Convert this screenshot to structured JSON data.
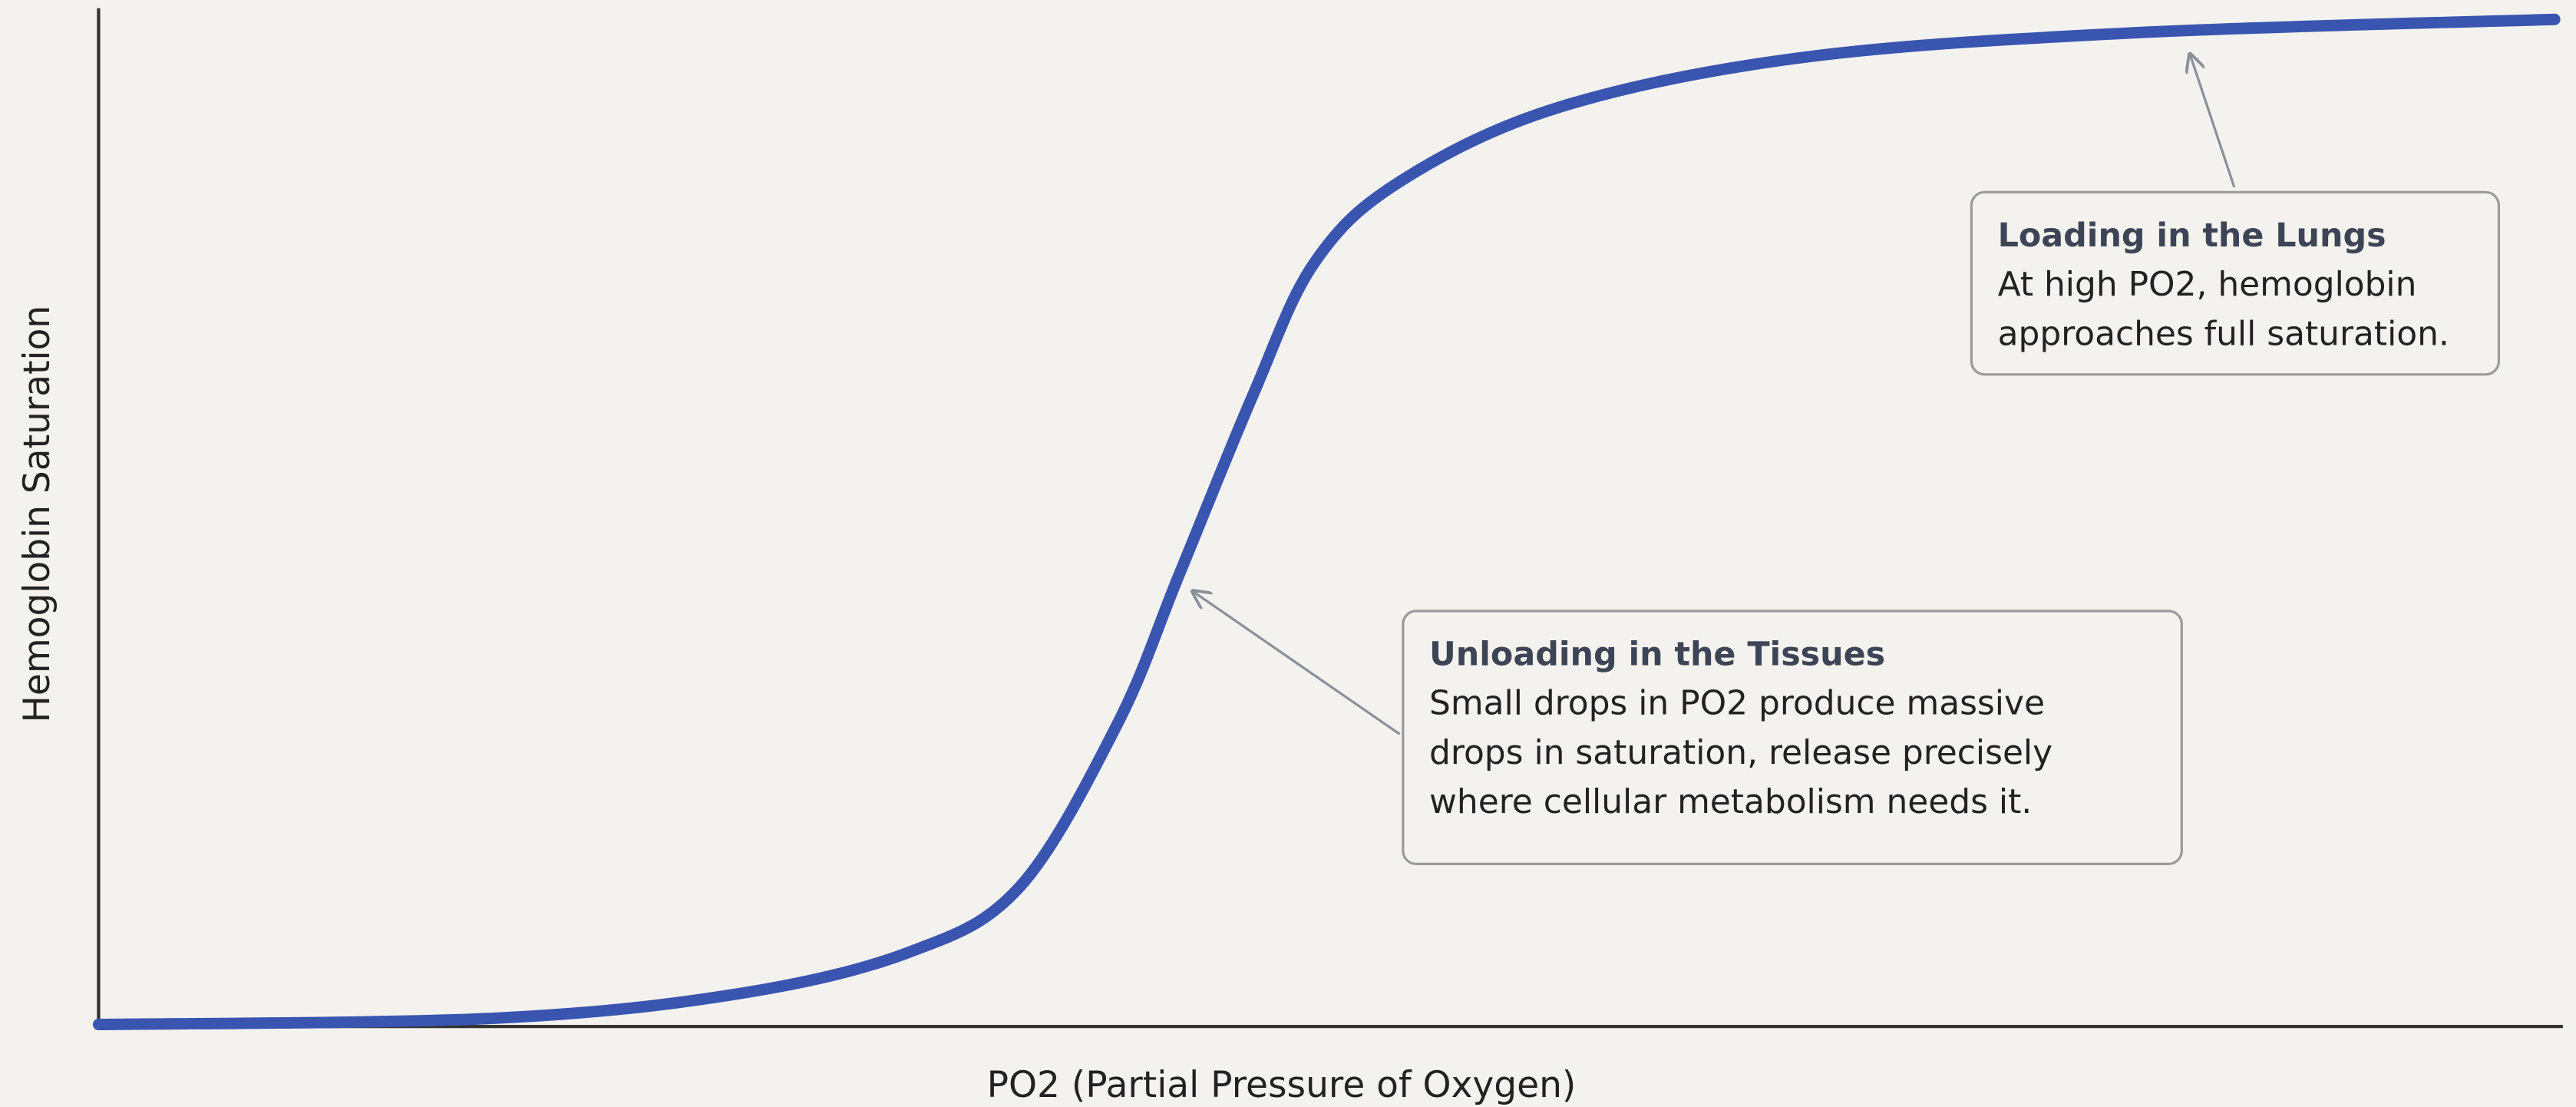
{
  "chart_data": {
    "type": "line",
    "xlabel": "PO2 (Partial Pressure of Oxygen)",
    "ylabel": "Hemoglobin Saturation",
    "x": [
      0,
      16,
      26,
      33,
      37.5,
      41.5,
      44,
      47,
      49.5,
      53,
      59.5,
      69.5,
      83,
      100
    ],
    "values": [
      0.2,
      0.8,
      3.2,
      7.3,
      13.7,
      29.8,
      44.4,
      62,
      75,
      83,
      90.3,
      95.2,
      97.6,
      98.9
    ],
    "color": "#3a55b0",
    "xlim": [
      0,
      100
    ],
    "ylim": [
      0,
      100
    ],
    "annotations": [
      {
        "title": "Loading in the Lungs",
        "lines": [
          "At high PO2, hemoglobin",
          "approaches full saturation."
        ]
      },
      {
        "title": "Unloading in the Tissues",
        "lines": [
          "Small drops in PO2 produce massive",
          "drops in saturation, release precisely",
          "where cellular metabolism needs it."
        ]
      }
    ]
  }
}
